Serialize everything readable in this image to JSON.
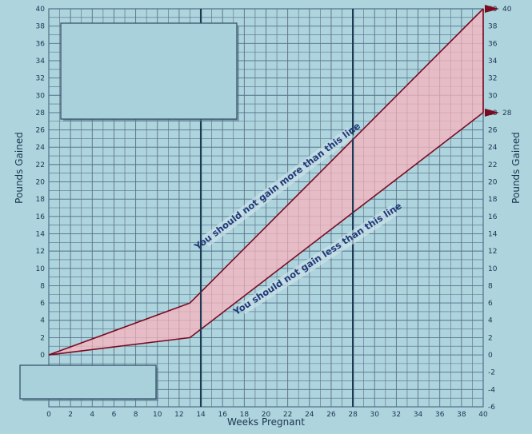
{
  "chart_data": {
    "type": "area",
    "xlabel": "Weeks Pregnant",
    "ylabel": "Pounds Gained",
    "ylabel_right": "Pounds Gained",
    "xlim": [
      0,
      40
    ],
    "ylim": [
      -6,
      40
    ],
    "x_ticks": [
      0,
      2,
      4,
      6,
      8,
      10,
      12,
      14,
      16,
      18,
      20,
      22,
      24,
      26,
      28,
      30,
      32,
      34,
      36,
      38,
      40
    ],
    "y_ticks": [
      -6,
      -4,
      -2,
      0,
      2,
      4,
      6,
      8,
      10,
      12,
      14,
      16,
      18,
      20,
      22,
      24,
      26,
      28,
      30,
      32,
      34,
      36,
      38,
      40
    ],
    "grid": true,
    "vertical_markers": [
      14,
      28
    ],
    "series": [
      {
        "name": "You should not gain more than this line",
        "x": [
          0,
          13,
          40
        ],
        "y": [
          0,
          6,
          40
        ]
      },
      {
        "name": "You should not gain less than this line",
        "x": [
          0,
          13,
          40
        ],
        "y": [
          0,
          2,
          28
        ]
      }
    ],
    "end_markers": [
      {
        "label": "40",
        "value": 40
      },
      {
        "label": "28",
        "value": 28
      }
    ],
    "colors": {
      "background": "#aed4de",
      "grid": "#4f7289",
      "band_fill": "#f6b6bf",
      "band_line": "#7a0c22",
      "marker_line": "#1e3a52",
      "arrow": "#7a0c22"
    }
  }
}
